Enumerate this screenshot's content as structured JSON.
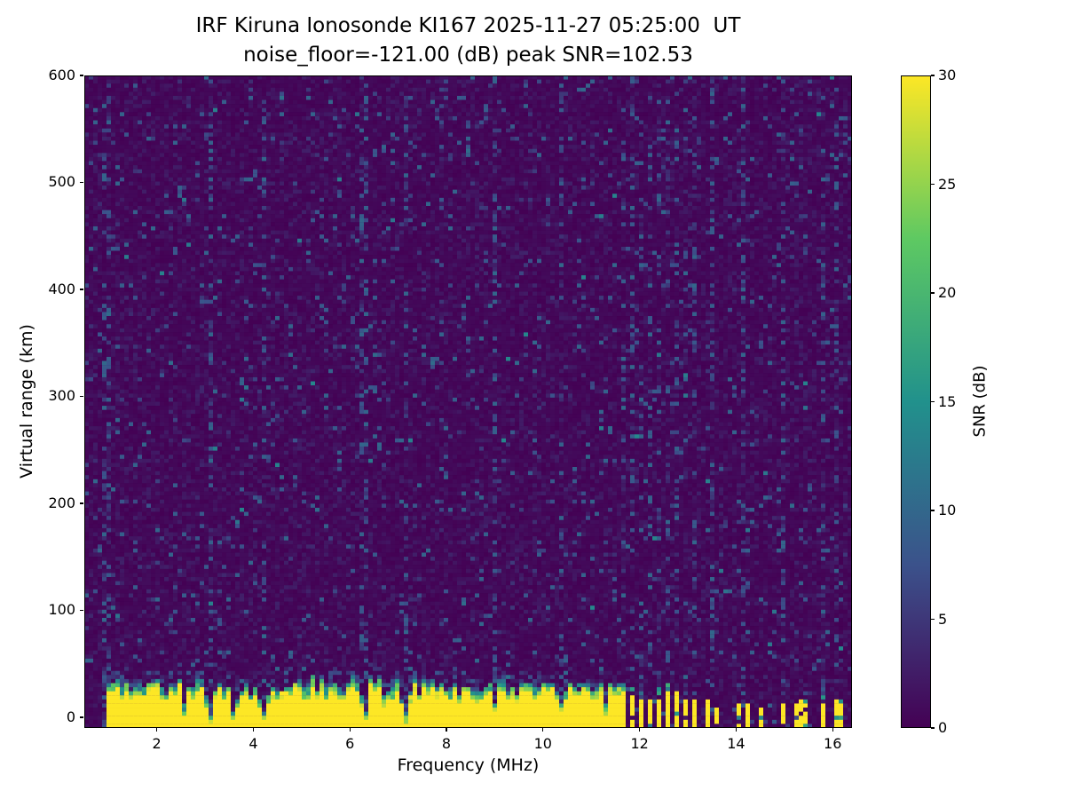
{
  "chart_data": {
    "type": "heatmap",
    "title": "IRF Kiruna Ionosonde KI167 2025-11-27 05:25:00  UT",
    "subtitle": "noise_floor=-121.00 (dB) peak SNR=102.53",
    "station": "IRF Kiruna Ionosonde KI167",
    "timestamp_ut": "2025-11-27 05:25:00",
    "noise_floor_db": -121.0,
    "peak_snr_db": 102.53,
    "xlabel": "Frequency (MHz)",
    "ylabel": "Virtual range (km)",
    "xlim": [
      0.5,
      16.4
    ],
    "ylim": [
      -10,
      600
    ],
    "xticks": [
      2,
      4,
      6,
      8,
      10,
      12,
      14,
      16
    ],
    "yticks": [
      0,
      100,
      200,
      300,
      400,
      500,
      600
    ],
    "grid": false,
    "colormap": "viridis",
    "colormap_stops": [
      "#440154",
      "#3b528b",
      "#21918c",
      "#5ec962",
      "#fde725"
    ],
    "colorbar": {
      "label": "SNR (dB)",
      "min": 0,
      "max": 30,
      "ticks": [
        0,
        5,
        10,
        15,
        20,
        25,
        30
      ]
    },
    "features": {
      "background": {
        "snr_db_range": [
          0,
          3
        ],
        "speckle_snr_db_range": [
          3,
          12
        ],
        "speckle_density": 0.055
      },
      "ground_echo_band": {
        "freq_mhz_range": [
          0.95,
          11.62
        ],
        "top_virtual_range_km_range": [
          22,
          36
        ],
        "saturated_snr_db": 30,
        "deep_notch_freqs_mhz": [
          3.1,
          3.6,
          4.2,
          6.3,
          7.15
        ],
        "shallow_notch_freqs_mhz": [
          2.55,
          9.0,
          10.35,
          11.3
        ]
      },
      "rfi_bars": {
        "snr_db": 30,
        "cluster_freqs_mhz": [
          11.66,
          11.84,
          12.03,
          12.21,
          12.4,
          12.58,
          12.76,
          12.95,
          13.13
        ],
        "sparse_freqs_mhz": [
          13.45,
          13.58,
          14.08,
          14.2,
          14.5,
          14.95,
          15.3,
          15.44,
          15.78,
          16.08,
          16.2
        ],
        "cluster_top_km_range": [
          16,
          27
        ],
        "sparse_top_km_range": [
          7,
          19
        ]
      },
      "noise_columns_mhz": [
        0.97,
        3.1,
        4.2,
        6.3,
        7.15,
        9.0,
        10.35,
        13.5,
        14.15,
        14.95,
        15.8,
        16.1
      ]
    }
  }
}
